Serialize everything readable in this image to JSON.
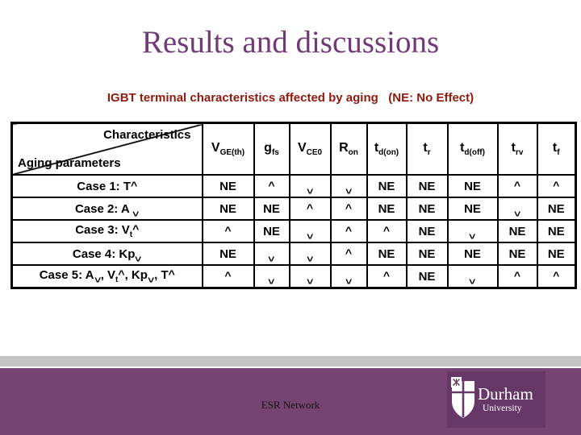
{
  "slide": {
    "title": "Results and discussions",
    "subtitle": "IGBT terminal characteristics affected by aging   (NE: No Effect)"
  },
  "table": {
    "corner": {
      "top_right": "Characteristics",
      "bottom_left": "Aging parameters"
    },
    "up_glyph": "^",
    "down_glyph": "^",
    "ne_label": "NE",
    "columns": [
      {
        "base": "V",
        "sub": "GE(th)"
      },
      {
        "base": "g",
        "sub": "fs"
      },
      {
        "base": "V",
        "sub": "CE0"
      },
      {
        "base": "R",
        "sub": "on"
      },
      {
        "base": "t",
        "sub": "d(on)"
      },
      {
        "base": "t",
        "sub": "r"
      },
      {
        "base": "t",
        "sub": "d(off)"
      },
      {
        "base": "t",
        "sub": "rv"
      },
      {
        "base": "t",
        "sub": "f"
      }
    ],
    "rows": [
      {
        "label": [
          {
            "t": "Case 1: T"
          },
          {
            "up": true
          }
        ],
        "align": "left",
        "values": [
          "NE",
          "up",
          "down",
          "down",
          "NE",
          "NE",
          "NE",
          "up",
          "up"
        ]
      },
      {
        "label": [
          {
            "t": "Case 2: A "
          },
          {
            "down": true
          }
        ],
        "align": "left",
        "values": [
          "NE",
          "NE",
          "up",
          "up",
          "NE",
          "NE",
          "NE",
          "down",
          "NE"
        ]
      },
      {
        "label": [
          {
            "t": "Case 3: V"
          },
          {
            "sub": "t"
          },
          {
            "up": true
          }
        ],
        "align": "left",
        "values": [
          "up",
          "NE",
          "down",
          "up",
          "up",
          "NE",
          "down",
          "NE",
          "NE"
        ]
      },
      {
        "label": [
          {
            "t": "Case 4: Kp"
          },
          {
            "down": true
          }
        ],
        "align": "left",
        "values": [
          "NE",
          "down",
          "down",
          "up",
          "NE",
          "NE",
          "NE",
          "NE",
          "NE"
        ]
      },
      {
        "label": [
          {
            "t": "Case 5: A"
          },
          {
            "down": true
          },
          {
            "t": ", V"
          },
          {
            "sub": "t"
          },
          {
            "up": true
          },
          {
            "t": ", Kp"
          },
          {
            "down": true
          },
          {
            "t": ", T"
          },
          {
            "up": true
          }
        ],
        "align": "center",
        "values": [
          "up",
          "down",
          "down",
          "down",
          "up",
          "NE",
          "down",
          "up",
          "up"
        ]
      }
    ]
  },
  "footer": {
    "esr_label": "ESR Network",
    "logo": {
      "line1": "Durham",
      "line2": "University"
    }
  },
  "colors": {
    "title_color": "#6f3a75",
    "subtitle_color": "#8f1a0e",
    "footer_purple": "#764473",
    "logo_purple": "#663767",
    "gray_bar": "#c3c3c7"
  }
}
